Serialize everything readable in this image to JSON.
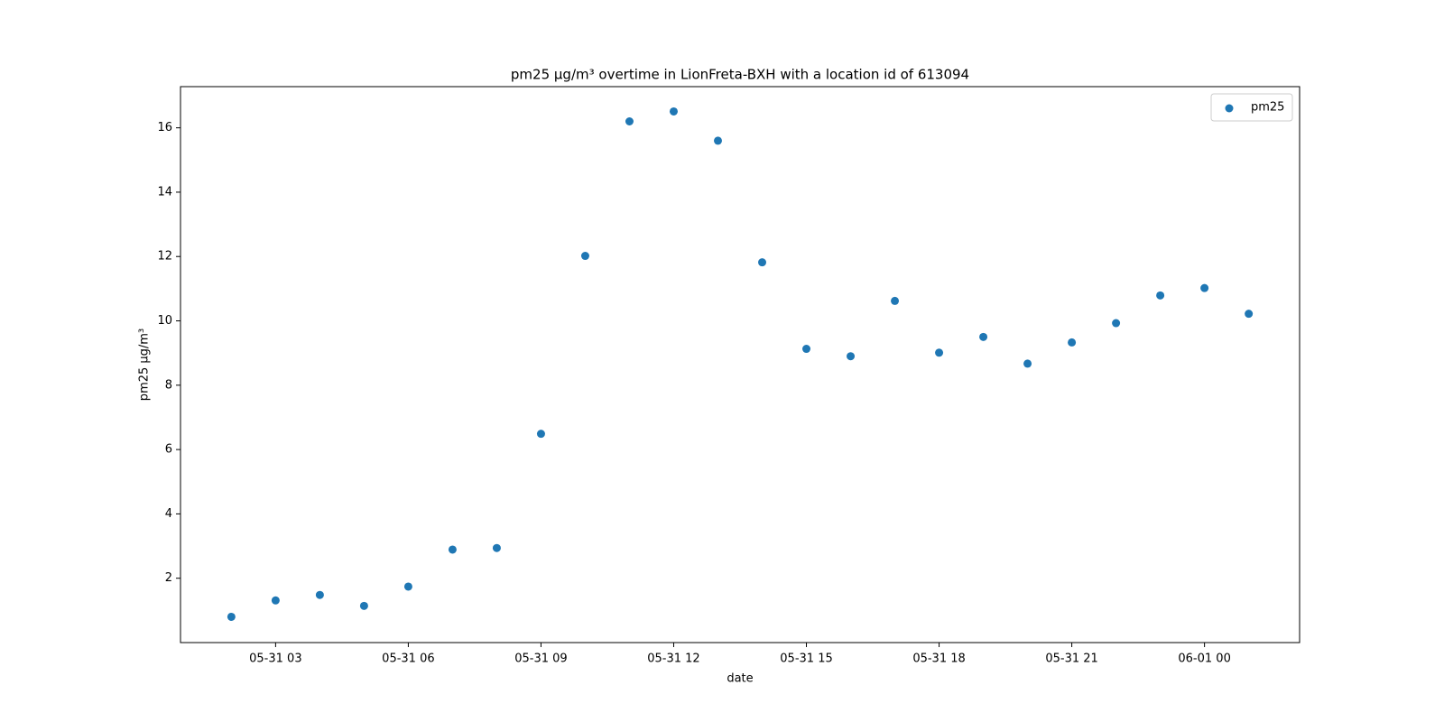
{
  "chart_data": {
    "type": "scatter",
    "title": "pm25 µg/m³ overtime in LionFreta-BXH with a location id of 613094",
    "xlabel": "date",
    "ylabel": "pm25 µg/m³",
    "x": [
      "05-31 02",
      "05-31 03",
      "05-31 04",
      "05-31 05",
      "05-31 06",
      "05-31 07",
      "05-31 08",
      "05-31 09",
      "05-31 10",
      "05-31 11",
      "05-31 12",
      "05-31 13",
      "05-31 14",
      "05-31 15",
      "05-31 16",
      "05-31 17",
      "05-31 18",
      "05-31 19",
      "05-31 20",
      "05-31 21",
      "05-31 22",
      "05-31 23",
      "06-01 00",
      "06-01 01"
    ],
    "series": [
      {
        "name": "pm25",
        "color": "#1f77b4",
        "values": [
          0.8,
          1.31,
          1.48,
          1.14,
          1.74,
          2.89,
          2.94,
          6.49,
          12.02,
          16.2,
          16.51,
          15.6,
          11.82,
          9.13,
          8.9,
          10.62,
          9.01,
          9.5,
          8.67,
          9.33,
          9.93,
          10.79,
          11.02,
          10.22
        ]
      }
    ],
    "xlim": [
      "05-31 00:51",
      "06-01 02:09"
    ],
    "xticks": [
      "05-31 03",
      "05-31 06",
      "05-31 09",
      "05-31 12",
      "05-31 15",
      "05-31 18",
      "05-31 21",
      "06-01 00"
    ],
    "ylim": [
      0,
      17.28
    ],
    "yticks": [
      2,
      4,
      6,
      8,
      10,
      12,
      14,
      16
    ],
    "legend": "upper right"
  }
}
